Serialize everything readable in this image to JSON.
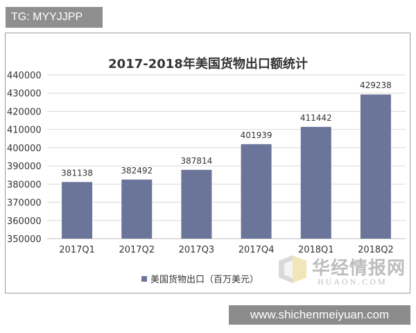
{
  "watermark_badge": "TG: MYYJJPP",
  "site_watermark": "www.shichenmeiyuan.com",
  "logo_watermark": {
    "cn": "华经情报网",
    "en": "HUAON.COM"
  },
  "colors": {
    "bar": "#6b7499",
    "grid": "#d9d9d9",
    "axis_text": "#333333"
  },
  "chart_data": {
    "type": "bar",
    "title": "2017-2018年美国货物出口额统计",
    "categories": [
      "2017Q1",
      "2017Q2",
      "2017Q3",
      "2017Q4",
      "2018Q1",
      "2018Q2"
    ],
    "series": [
      {
        "name": "美国货物出口（百万美元）",
        "values": [
          381138,
          382492,
          387814,
          401939,
          411442,
          429238
        ]
      }
    ],
    "data_labels": [
      "381138",
      "382492",
      "387814",
      "401939",
      "411442",
      "429238"
    ],
    "ylim": [
      350000,
      440000
    ],
    "yticks": [
      "350000",
      "360000",
      "370000",
      "380000",
      "390000",
      "400000",
      "410000",
      "420000",
      "430000",
      "440000"
    ],
    "grid": true,
    "legend": "bottom"
  }
}
